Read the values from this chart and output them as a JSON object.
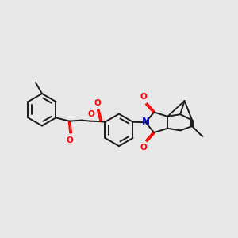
{
  "bg": "#e8e8e8",
  "bc": "#1a1a1a",
  "oc": "#ff0000",
  "nc": "#0000cc",
  "lw": 1.4,
  "dbgap": 0.018,
  "figsize": [
    3.0,
    3.0
  ],
  "dpi": 100,
  "xlim": [
    -2.8,
    2.8
  ],
  "ylim": [
    -1.6,
    1.6
  ]
}
